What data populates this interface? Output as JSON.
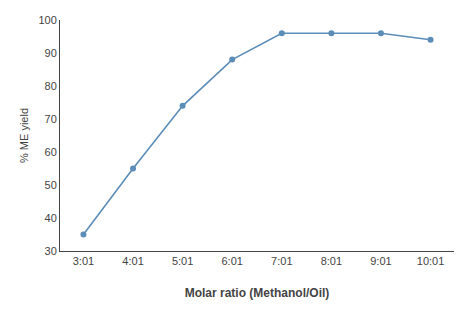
{
  "chart_data": {
    "type": "line",
    "categories": [
      "3:01",
      "4:01",
      "5:01",
      "6:01",
      "7:01",
      "8:01",
      "9:01",
      "10:01"
    ],
    "values": [
      35,
      55,
      74,
      88,
      96,
      96,
      96,
      94
    ],
    "color": "#5b8db8",
    "marker": "circle",
    "x_label": "Molar ratio (Methanol/Oil)",
    "y_label": "% ME yield",
    "ylim": [
      30,
      100
    ],
    "yticks": [
      30,
      40,
      50,
      60,
      70,
      80,
      90,
      100
    ],
    "grid": false
  }
}
